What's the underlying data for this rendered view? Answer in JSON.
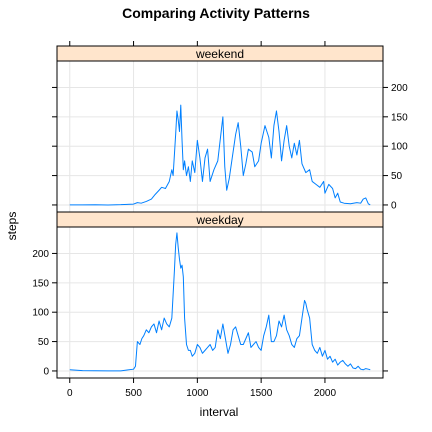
{
  "chart_data": {
    "type": "line",
    "title": "Comparing Activity Patterns",
    "xlabel": "interval",
    "ylabel": "steps",
    "xlim": [
      -100,
      2455
    ],
    "ylim": [
      -12,
      245
    ],
    "x_ticks": [
      0,
      500,
      1000,
      1500,
      2000
    ],
    "y_ticks": [
      0,
      50,
      100,
      150,
      200
    ],
    "grid": true,
    "line_color": "#0080ff",
    "strip_color": "#ffe5cc",
    "panels": [
      {
        "name": "weekend",
        "y_ticks_side": "right",
        "points": [
          [
            0,
            0.2
          ],
          [
            100,
            0.1
          ],
          [
            200,
            0.3
          ],
          [
            300,
            0
          ],
          [
            400,
            0.5
          ],
          [
            500,
            1.5
          ],
          [
            530,
            4
          ],
          [
            560,
            3
          ],
          [
            600,
            6
          ],
          [
            640,
            10
          ],
          [
            670,
            18
          ],
          [
            700,
            25
          ],
          [
            720,
            30
          ],
          [
            750,
            28
          ],
          [
            780,
            40
          ],
          [
            800,
            60
          ],
          [
            810,
            50
          ],
          [
            830,
            120
          ],
          [
            840,
            160
          ],
          [
            850,
            145
          ],
          [
            860,
            125
          ],
          [
            870,
            170
          ],
          [
            880,
            110
          ],
          [
            890,
            60
          ],
          [
            900,
            75
          ],
          [
            915,
            50
          ],
          [
            930,
            65
          ],
          [
            945,
            40
          ],
          [
            960,
            75
          ],
          [
            980,
            55
          ],
          [
            1000,
            110
          ],
          [
            1020,
            80
          ],
          [
            1040,
            40
          ],
          [
            1060,
            80
          ],
          [
            1080,
            95
          ],
          [
            1100,
            40
          ],
          [
            1130,
            60
          ],
          [
            1160,
            75
          ],
          [
            1200,
            150
          ],
          [
            1215,
            65
          ],
          [
            1230,
            25
          ],
          [
            1250,
            45
          ],
          [
            1270,
            75
          ],
          [
            1300,
            120
          ],
          [
            1320,
            140
          ],
          [
            1340,
            100
          ],
          [
            1360,
            50
          ],
          [
            1380,
            70
          ],
          [
            1400,
            95
          ],
          [
            1430,
            90
          ],
          [
            1450,
            65
          ],
          [
            1480,
            75
          ],
          [
            1500,
            105
          ],
          [
            1530,
            135
          ],
          [
            1560,
            115
          ],
          [
            1580,
            80
          ],
          [
            1600,
            135
          ],
          [
            1620,
            160
          ],
          [
            1640,
            125
          ],
          [
            1660,
            75
          ],
          [
            1680,
            110
          ],
          [
            1700,
            135
          ],
          [
            1720,
            100
          ],
          [
            1740,
            80
          ],
          [
            1760,
            105
          ],
          [
            1780,
            85
          ],
          [
            1800,
            110
          ],
          [
            1820,
            70
          ],
          [
            1850,
            55
          ],
          [
            1880,
            60
          ],
          [
            1900,
            40
          ],
          [
            1930,
            35
          ],
          [
            1960,
            30
          ],
          [
            1990,
            40
          ],
          [
            2000,
            20
          ],
          [
            2030,
            35
          ],
          [
            2060,
            28
          ],
          [
            2080,
            12
          ],
          [
            2100,
            20
          ],
          [
            2120,
            5
          ],
          [
            2150,
            3
          ],
          [
            2200,
            2
          ],
          [
            2250,
            4
          ],
          [
            2280,
            3
          ],
          [
            2300,
            10
          ],
          [
            2320,
            12
          ],
          [
            2340,
            2
          ],
          [
            2355,
            0
          ]
        ]
      },
      {
        "name": "weekday",
        "y_ticks_side": "left",
        "points": [
          [
            0,
            2
          ],
          [
            100,
            0.5
          ],
          [
            200,
            0.3
          ],
          [
            300,
            0.2
          ],
          [
            400,
            0.2
          ],
          [
            500,
            3
          ],
          [
            515,
            8
          ],
          [
            530,
            50
          ],
          [
            550,
            45
          ],
          [
            565,
            55
          ],
          [
            580,
            60
          ],
          [
            600,
            70
          ],
          [
            620,
            65
          ],
          [
            640,
            75
          ],
          [
            660,
            80
          ],
          [
            680,
            65
          ],
          [
            700,
            85
          ],
          [
            720,
            70
          ],
          [
            740,
            90
          ],
          [
            760,
            80
          ],
          [
            780,
            75
          ],
          [
            800,
            90
          ],
          [
            820,
            170
          ],
          [
            830,
            215
          ],
          [
            840,
            235
          ],
          [
            850,
            210
          ],
          [
            860,
            190
          ],
          [
            870,
            175
          ],
          [
            880,
            180
          ],
          [
            890,
            160
          ],
          [
            900,
            90
          ],
          [
            915,
            45
          ],
          [
            930,
            35
          ],
          [
            945,
            35
          ],
          [
            960,
            25
          ],
          [
            980,
            30
          ],
          [
            1000,
            45
          ],
          [
            1020,
            40
          ],
          [
            1040,
            30
          ],
          [
            1060,
            35
          ],
          [
            1080,
            40
          ],
          [
            1100,
            45
          ],
          [
            1120,
            35
          ],
          [
            1140,
            40
          ],
          [
            1160,
            70
          ],
          [
            1180,
            55
          ],
          [
            1200,
            80
          ],
          [
            1220,
            55
          ],
          [
            1240,
            30
          ],
          [
            1260,
            45
          ],
          [
            1280,
            70
          ],
          [
            1300,
            75
          ],
          [
            1320,
            60
          ],
          [
            1340,
            45
          ],
          [
            1360,
            45
          ],
          [
            1380,
            55
          ],
          [
            1400,
            65
          ],
          [
            1420,
            40
          ],
          [
            1440,
            45
          ],
          [
            1460,
            50
          ],
          [
            1480,
            40
          ],
          [
            1500,
            35
          ],
          [
            1520,
            60
          ],
          [
            1540,
            75
          ],
          [
            1560,
            95
          ],
          [
            1580,
            50
          ],
          [
            1600,
            50
          ],
          [
            1620,
            60
          ],
          [
            1640,
            85
          ],
          [
            1660,
            75
          ],
          [
            1680,
            95
          ],
          [
            1700,
            70
          ],
          [
            1720,
            60
          ],
          [
            1740,
            45
          ],
          [
            1760,
            40
          ],
          [
            1780,
            55
          ],
          [
            1800,
            60
          ],
          [
            1820,
            90
          ],
          [
            1840,
            120
          ],
          [
            1850,
            115
          ],
          [
            1860,
            105
          ],
          [
            1880,
            90
          ],
          [
            1900,
            45
          ],
          [
            1920,
            35
          ],
          [
            1940,
            30
          ],
          [
            1960,
            40
          ],
          [
            1980,
            25
          ],
          [
            2000,
            35
          ],
          [
            2020,
            20
          ],
          [
            2040,
            25
          ],
          [
            2060,
            15
          ],
          [
            2080,
            20
          ],
          [
            2100,
            10
          ],
          [
            2120,
            15
          ],
          [
            2140,
            18
          ],
          [
            2160,
            12
          ],
          [
            2180,
            8
          ],
          [
            2200,
            12
          ],
          [
            2220,
            5
          ],
          [
            2240,
            4
          ],
          [
            2260,
            8
          ],
          [
            2280,
            3
          ],
          [
            2300,
            2
          ],
          [
            2320,
            4
          ],
          [
            2340,
            3
          ],
          [
            2355,
            2
          ]
        ]
      }
    ]
  }
}
